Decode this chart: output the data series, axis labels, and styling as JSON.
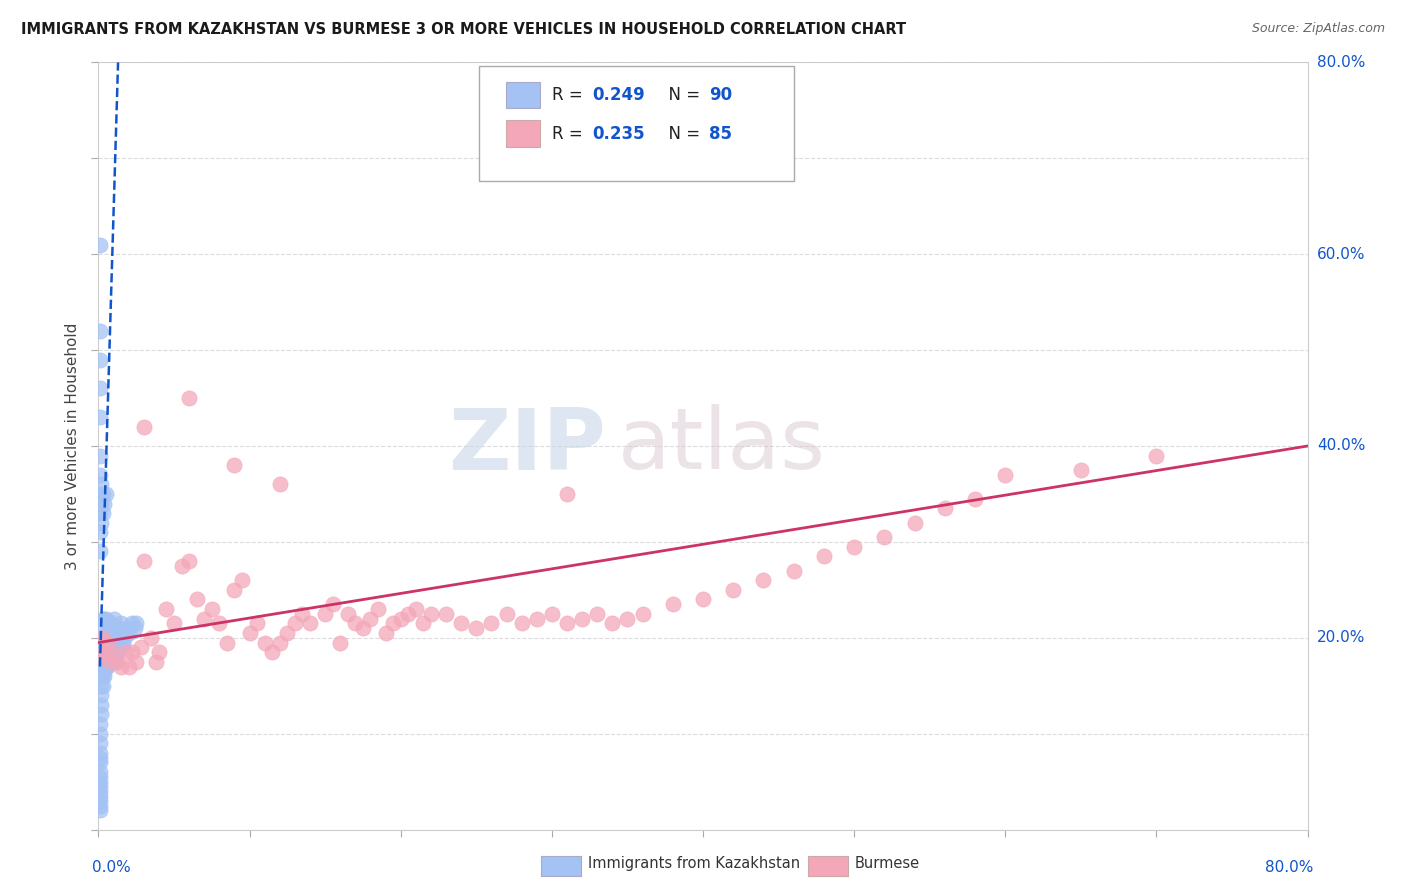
{
  "title": "IMMIGRANTS FROM KAZAKHSTAN VS BURMESE 3 OR MORE VEHICLES IN HOUSEHOLD CORRELATION CHART",
  "source": "Source: ZipAtlas.com",
  "series1_label": "Immigrants from Kazakhstan",
  "series2_label": "Burmese",
  "series1_color": "#a4c2f4",
  "series2_color": "#f4a7b9",
  "series1_R": "0.249",
  "series1_N": "90",
  "series2_R": "0.235",
  "series2_N": "85",
  "trend1_color": "#1155cc",
  "trend2_color": "#cc3366",
  "watermark_zip": "ZIP",
  "watermark_atlas": "atlas",
  "background_color": "#ffffff",
  "legend_color": "#1155cc",
  "xmin": 0.0,
  "xmax": 0.8,
  "ymin": 0.0,
  "ymax": 0.8,
  "series1_x": [
    0.001,
    0.001,
    0.001,
    0.001,
    0.001,
    0.001,
    0.001,
    0.001,
    0.001,
    0.001,
    0.001,
    0.001,
    0.001,
    0.001,
    0.001,
    0.002,
    0.002,
    0.002,
    0.002,
    0.002,
    0.002,
    0.002,
    0.002,
    0.002,
    0.003,
    0.003,
    0.003,
    0.003,
    0.003,
    0.003,
    0.003,
    0.004,
    0.004,
    0.004,
    0.004,
    0.004,
    0.005,
    0.005,
    0.005,
    0.005,
    0.006,
    0.006,
    0.006,
    0.006,
    0.007,
    0.007,
    0.007,
    0.008,
    0.008,
    0.008,
    0.009,
    0.009,
    0.01,
    0.01,
    0.01,
    0.011,
    0.011,
    0.012,
    0.012,
    0.013,
    0.013,
    0.014,
    0.015,
    0.015,
    0.016,
    0.017,
    0.018,
    0.019,
    0.02,
    0.022,
    0.024,
    0.025,
    0.001,
    0.001,
    0.001,
    0.001,
    0.001,
    0.001,
    0.002,
    0.002,
    0.002,
    0.003,
    0.003,
    0.004,
    0.005,
    0.001,
    0.001,
    0.001,
    0.001,
    0.001
  ],
  "series1_y": [
    0.02,
    0.025,
    0.03,
    0.035,
    0.04,
    0.045,
    0.05,
    0.055,
    0.06,
    0.07,
    0.075,
    0.08,
    0.09,
    0.1,
    0.11,
    0.12,
    0.13,
    0.14,
    0.15,
    0.16,
    0.17,
    0.18,
    0.19,
    0.2,
    0.15,
    0.16,
    0.17,
    0.18,
    0.2,
    0.21,
    0.22,
    0.16,
    0.17,
    0.19,
    0.2,
    0.22,
    0.17,
    0.185,
    0.2,
    0.22,
    0.17,
    0.185,
    0.2,
    0.215,
    0.175,
    0.19,
    0.21,
    0.175,
    0.195,
    0.215,
    0.18,
    0.2,
    0.175,
    0.195,
    0.22,
    0.18,
    0.205,
    0.185,
    0.21,
    0.185,
    0.21,
    0.195,
    0.19,
    0.215,
    0.195,
    0.2,
    0.205,
    0.21,
    0.205,
    0.215,
    0.21,
    0.215,
    0.29,
    0.31,
    0.33,
    0.35,
    0.37,
    0.39,
    0.32,
    0.34,
    0.36,
    0.33,
    0.35,
    0.34,
    0.35,
    0.43,
    0.46,
    0.49,
    0.52,
    0.61
  ],
  "series2_x": [
    0.002,
    0.003,
    0.005,
    0.006,
    0.008,
    0.01,
    0.012,
    0.015,
    0.018,
    0.02,
    0.022,
    0.025,
    0.028,
    0.03,
    0.035,
    0.038,
    0.04,
    0.045,
    0.05,
    0.055,
    0.06,
    0.065,
    0.07,
    0.075,
    0.08,
    0.085,
    0.09,
    0.095,
    0.1,
    0.105,
    0.11,
    0.115,
    0.12,
    0.125,
    0.13,
    0.135,
    0.14,
    0.15,
    0.155,
    0.16,
    0.165,
    0.17,
    0.175,
    0.18,
    0.185,
    0.19,
    0.195,
    0.2,
    0.205,
    0.21,
    0.215,
    0.22,
    0.23,
    0.24,
    0.25,
    0.26,
    0.27,
    0.28,
    0.29,
    0.3,
    0.31,
    0.32,
    0.33,
    0.34,
    0.35,
    0.36,
    0.38,
    0.4,
    0.42,
    0.44,
    0.46,
    0.48,
    0.5,
    0.52,
    0.54,
    0.56,
    0.58,
    0.6,
    0.65,
    0.7,
    0.03,
    0.06,
    0.09,
    0.12,
    0.31
  ],
  "series2_y": [
    0.18,
    0.2,
    0.185,
    0.195,
    0.175,
    0.185,
    0.175,
    0.17,
    0.185,
    0.17,
    0.185,
    0.175,
    0.19,
    0.28,
    0.2,
    0.175,
    0.185,
    0.23,
    0.215,
    0.275,
    0.28,
    0.24,
    0.22,
    0.23,
    0.215,
    0.195,
    0.25,
    0.26,
    0.205,
    0.215,
    0.195,
    0.185,
    0.195,
    0.205,
    0.215,
    0.225,
    0.215,
    0.225,
    0.235,
    0.195,
    0.225,
    0.215,
    0.21,
    0.22,
    0.23,
    0.205,
    0.215,
    0.22,
    0.225,
    0.23,
    0.215,
    0.225,
    0.225,
    0.215,
    0.21,
    0.215,
    0.225,
    0.215,
    0.22,
    0.225,
    0.215,
    0.22,
    0.225,
    0.215,
    0.22,
    0.225,
    0.235,
    0.24,
    0.25,
    0.26,
    0.27,
    0.285,
    0.295,
    0.305,
    0.32,
    0.335,
    0.345,
    0.37,
    0.375,
    0.39,
    0.42,
    0.45,
    0.38,
    0.36,
    0.35
  ]
}
